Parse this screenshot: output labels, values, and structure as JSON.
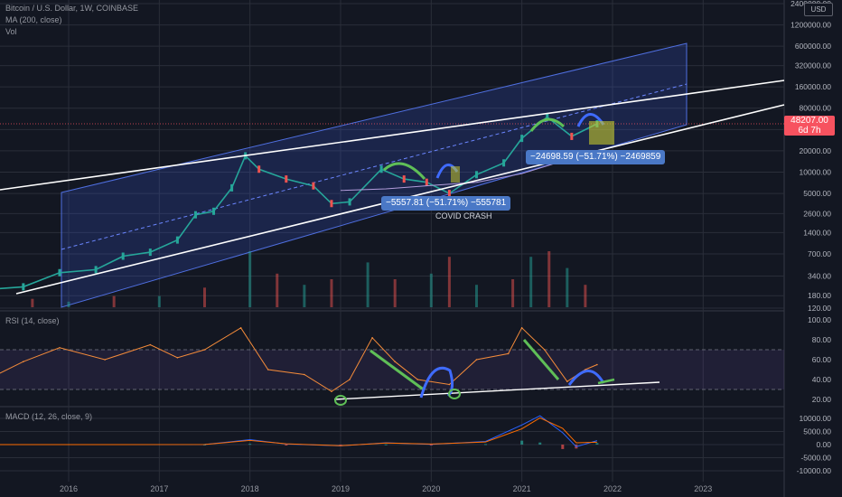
{
  "header": {
    "title": "Bitcoin / U.S. Dollar, 1W, COINBASE",
    "ma_label": "MA (200, close)",
    "vol_label": "Vol",
    "currency_badge": "USD"
  },
  "price_tag": {
    "price": "48207.00",
    "countdown": "6d 7h"
  },
  "annotations": {
    "measure_1": "−5557.81 (−51.71%) −555781",
    "measure_2": "−24698.59 (−51.71%) −2469859",
    "covid_label": "COVID CRASH"
  },
  "colors": {
    "background": "#131722",
    "grid": "#2a2e39",
    "candle_up": "#26a69a",
    "candle_down": "#ef5350",
    "channel_fill": "#3a5bd9",
    "rsi_line": "#f48b3a",
    "macd_line": "#2962ff",
    "signal_line": "#ff6d00",
    "drawing_green": "#5fbf57",
    "drawing_blue": "#3f6bff",
    "box_yellow": "#c6c92c",
    "price_tag": "#f7525f"
  },
  "chart_data": [
    {
      "type": "line",
      "panel": "price",
      "scale": "log",
      "x_ticks": [
        "2016",
        "2017",
        "2018",
        "2019",
        "2020",
        "2021",
        "2022",
        "2023"
      ],
      "y_ticks": [
        "2400000.00",
        "1200000.00",
        "600000.00",
        "320000.00",
        "160000.00",
        "80000.00",
        "40000.00",
        "20000.00",
        "10000.00",
        "5000.00",
        "2600.00",
        "1400.00",
        "700.00",
        "340.00",
        "180.00",
        "120.00"
      ],
      "x": [
        2015.1,
        2015.5,
        2015.9,
        2016.3,
        2016.6,
        2016.9,
        2017.2,
        2017.4,
        2017.6,
        2017.8,
        2017.95,
        2018.1,
        2018.4,
        2018.7,
        2018.9,
        2019.1,
        2019.45,
        2019.7,
        2019.95,
        2020.2,
        2020.5,
        2020.8,
        2021.0,
        2021.28,
        2021.55,
        2021.83
      ],
      "y": [
        220,
        240,
        380,
        420,
        650,
        740,
        1100,
        2500,
        2800,
        6000,
        17000,
        11000,
        8000,
        6400,
        3600,
        3800,
        11000,
        8000,
        7200,
        5000,
        9200,
        13500,
        30000,
        60000,
        32000,
        48207
      ],
      "ma200": {
        "x": [
          2019.0,
          2019.5,
          2020.0,
          2020.5,
          2021.0,
          2021.5,
          2021.83
        ],
        "y": [
          5500,
          5800,
          6500,
          7200,
          9500,
          15000,
          20000
        ]
      }
    },
    {
      "type": "bar",
      "panel": "volume",
      "title": "Vol",
      "x": [
        2015.2,
        2015.6,
        2016.0,
        2016.5,
        2017.0,
        2017.5,
        2018.0,
        2018.3,
        2018.6,
        2018.9,
        2019.3,
        2019.6,
        2020.0,
        2020.2,
        2020.5,
        2020.9,
        2021.1,
        2021.3,
        2021.5,
        2021.7
      ],
      "values": [
        0.1,
        0.15,
        0.1,
        0.2,
        0.2,
        0.35,
        1.0,
        0.6,
        0.4,
        0.5,
        0.8,
        0.5,
        0.6,
        0.9,
        0.4,
        0.5,
        0.9,
        1.0,
        0.7,
        0.4
      ]
    },
    {
      "type": "line",
      "panel": "rsi",
      "title": "RSI (14, close)",
      "y_ticks": [
        "100.00",
        "80.00",
        "60.00",
        "40.00",
        "20.00"
      ],
      "ylim": [
        20,
        100
      ],
      "x": [
        2015.1,
        2015.5,
        2015.9,
        2016.4,
        2016.9,
        2017.2,
        2017.5,
        2017.9,
        2018.2,
        2018.6,
        2018.9,
        2019.1,
        2019.35,
        2019.6,
        2019.85,
        2020.2,
        2020.5,
        2020.85,
        2021.0,
        2021.25,
        2021.5,
        2021.7,
        2021.83
      ],
      "y": [
        40,
        58,
        72,
        60,
        75,
        62,
        70,
        92,
        50,
        45,
        28,
        40,
        82,
        58,
        40,
        35,
        60,
        66,
        92,
        70,
        38,
        50,
        55
      ]
    },
    {
      "type": "line",
      "panel": "macd",
      "title": "MACD (12, 26, close, 9)",
      "y_ticks": [
        "10000.00",
        "5000.00",
        "0.00",
        "-5000.00",
        "-10000.00"
      ],
      "ylim": [
        -12000,
        14000
      ],
      "x": [
        2015.0,
        2017.5,
        2018.0,
        2018.4,
        2019.0,
        2019.5,
        2020.0,
        2020.6,
        2021.0,
        2021.2,
        2021.45,
        2021.6,
        2021.83
      ],
      "macd": [
        0,
        50,
        1900,
        200,
        -500,
        700,
        100,
        1200,
        7500,
        11000,
        4500,
        -800,
        1500
      ],
      "signal": [
        0,
        40,
        1600,
        300,
        -400,
        600,
        200,
        1000,
        6000,
        10200,
        6200,
        700,
        900
      ]
    }
  ]
}
